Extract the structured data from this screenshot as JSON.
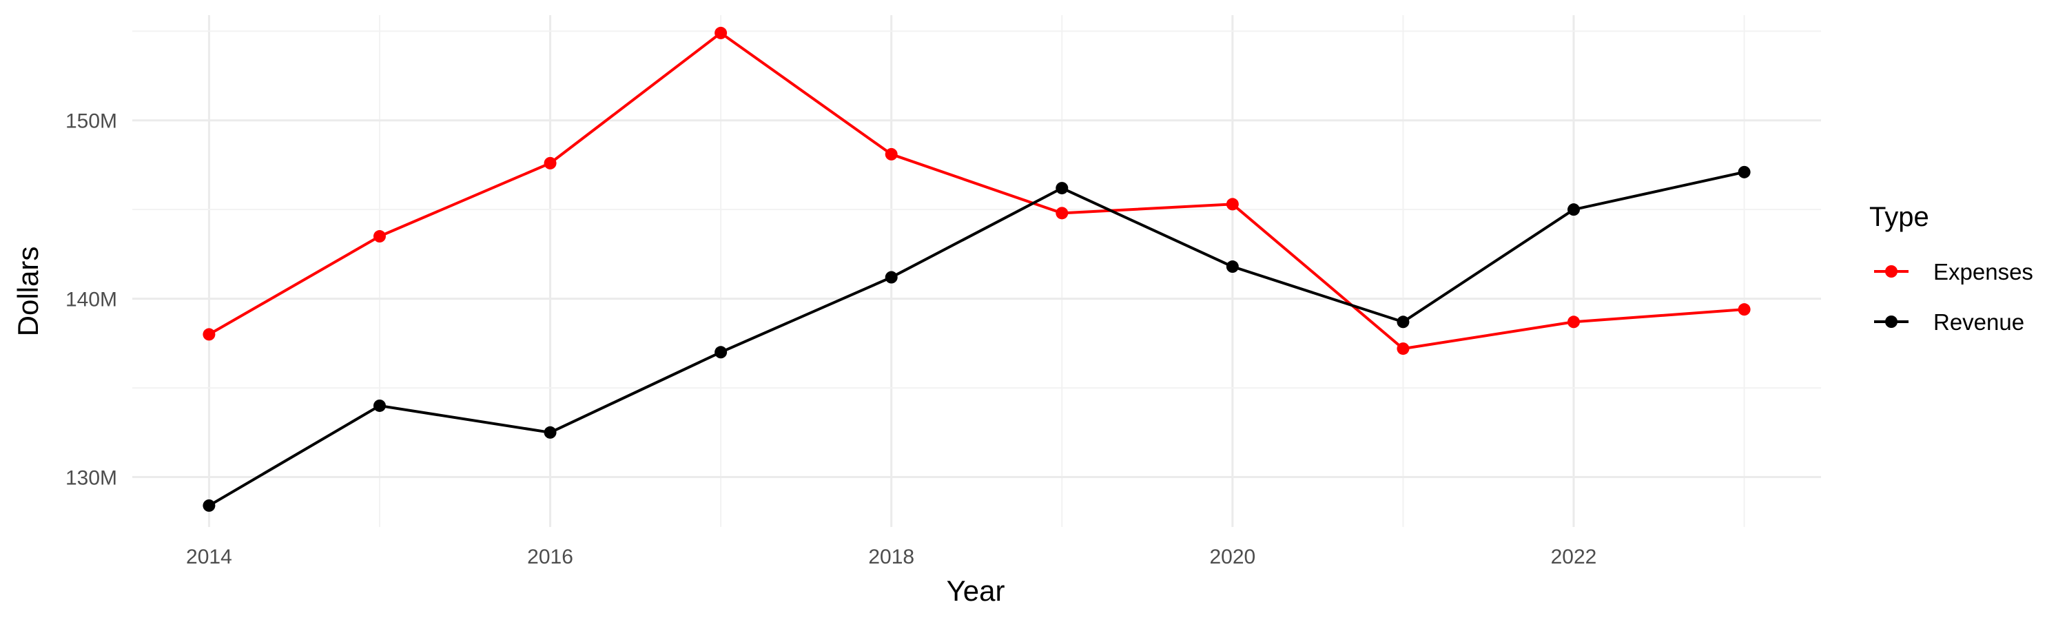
{
  "chart_data": {
    "type": "line",
    "title": "",
    "xlabel": "Year",
    "ylabel": "Dollars",
    "x": [
      2014,
      2015,
      2016,
      2017,
      2018,
      2019,
      2020,
      2021,
      2022,
      2023
    ],
    "x_tick_labels": [
      "2014",
      "2016",
      "2018",
      "2020",
      "2022"
    ],
    "x_tick_values": [
      2014,
      2016,
      2018,
      2020,
      2022
    ],
    "y_tick_values": [
      130000000,
      140000000,
      150000000
    ],
    "y_tick_labels": [
      "130M",
      "140M",
      "150M"
    ],
    "xlim": [
      2013.55,
      2023.45
    ],
    "ylim": [
      127200000,
      155900000
    ],
    "grid": true,
    "legend": {
      "title": "Type",
      "placement": "right"
    },
    "series": [
      {
        "name": "Expenses",
        "color": "#ff0000",
        "values": [
          138000000,
          143500000,
          147600000,
          154900000,
          148100000,
          144800000,
          145300000,
          137200000,
          138700000,
          139400000
        ]
      },
      {
        "name": "Revenue",
        "color": "#000000",
        "values": [
          128400000,
          134000000,
          132500000,
          137000000,
          141200000,
          146200000,
          141800000,
          138700000,
          145000000,
          147100000
        ]
      }
    ]
  }
}
